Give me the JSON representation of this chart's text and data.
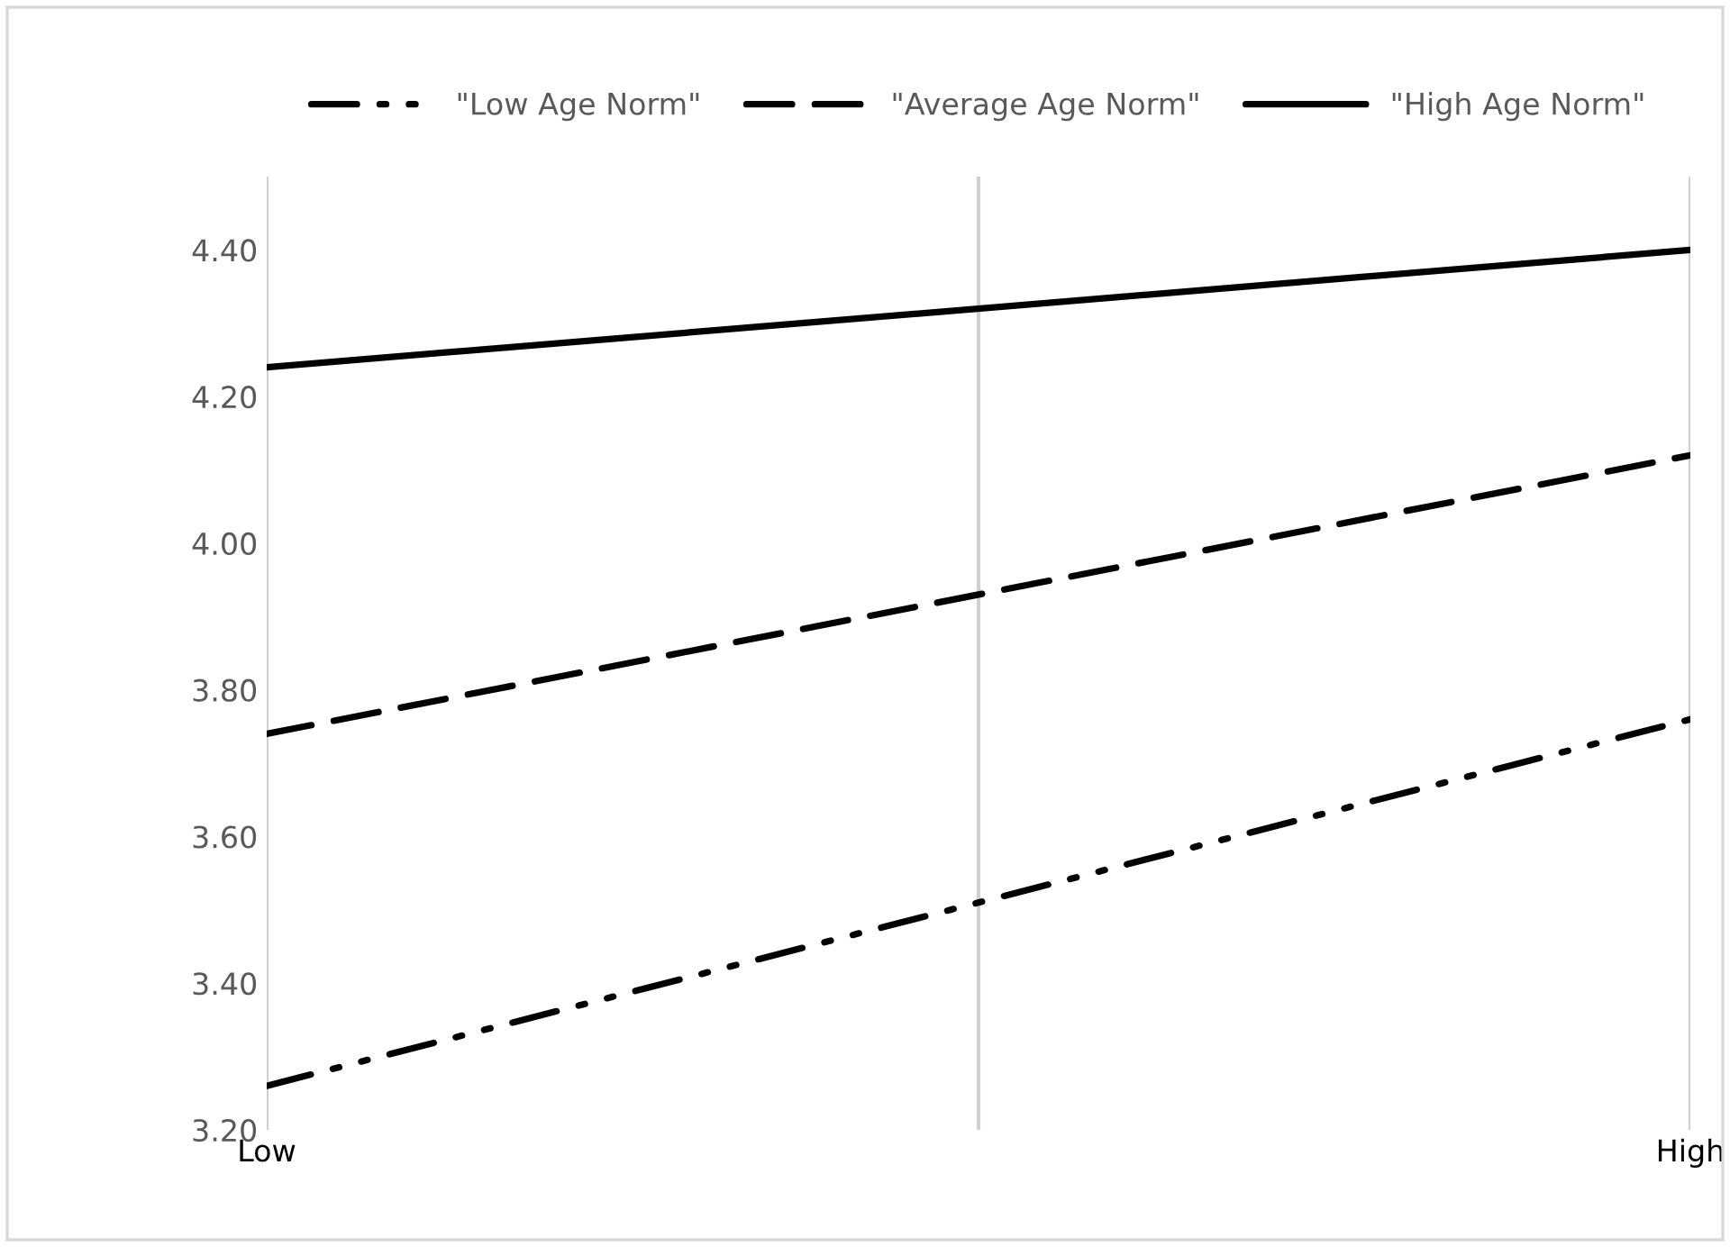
{
  "chart_data": {
    "type": "line",
    "categories": [
      "Low",
      "High"
    ],
    "series": [
      {
        "name": "\"Low Age Norm\"",
        "color": "#000000",
        "line_style": "dashdotdot",
        "values": [
          3.26,
          3.76
        ]
      },
      {
        "name": "\"Average Age Norm\"",
        "color": "#000000",
        "line_style": "dashed",
        "values": [
          3.74,
          4.12
        ]
      },
      {
        "name": "\"High Age Norm\"",
        "color": "#000000",
        "line_style": "solid",
        "values": [
          4.24,
          4.4
        ]
      }
    ],
    "ylim": [
      3.2,
      4.5
    ],
    "yticks": [
      {
        "value": 3.2,
        "label": "3.20"
      },
      {
        "value": 3.4,
        "label": "3.40"
      },
      {
        "value": 3.6,
        "label": "3.60"
      },
      {
        "value": 3.8,
        "label": "3.80"
      },
      {
        "value": 4.0,
        "label": "4.00"
      },
      {
        "value": 4.2,
        "label": "4.20"
      },
      {
        "value": 4.4,
        "label": "4.40"
      }
    ],
    "grid": "x",
    "legend": "top",
    "marker": "none"
  }
}
